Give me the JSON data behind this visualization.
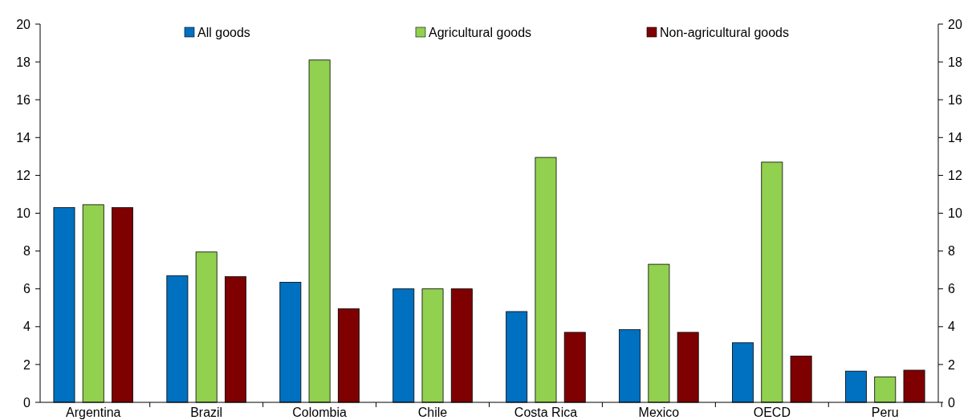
{
  "chart_data": {
    "type": "bar",
    "categories": [
      "Argentina",
      "Brazil",
      "Colombia",
      "Chile",
      "Costa Rica",
      "Mexico",
      "OECD",
      "Peru"
    ],
    "series": [
      {
        "name": "All goods",
        "color": "#0070c0",
        "values": [
          10.3,
          6.7,
          6.35,
          6.0,
          4.8,
          3.85,
          3.15,
          1.65
        ]
      },
      {
        "name": "Agricultural goods",
        "color": "#92d050",
        "values": [
          10.45,
          7.95,
          18.1,
          6.0,
          12.95,
          7.3,
          12.7,
          1.35
        ]
      },
      {
        "name": "Non-agricultural goods",
        "color": "#7f0000",
        "values": [
          10.3,
          6.65,
          4.95,
          6.0,
          3.7,
          3.7,
          2.45,
          1.7
        ]
      }
    ],
    "ylim": [
      0,
      20
    ],
    "yticks": [
      0,
      2,
      4,
      6,
      8,
      10,
      12,
      14,
      16,
      18,
      20
    ],
    "y2lim": [
      0,
      20
    ],
    "y2ticks": [
      0,
      2,
      4,
      6,
      8,
      10,
      12,
      14,
      16,
      18,
      20
    ],
    "legend": "top",
    "grid": false
  }
}
